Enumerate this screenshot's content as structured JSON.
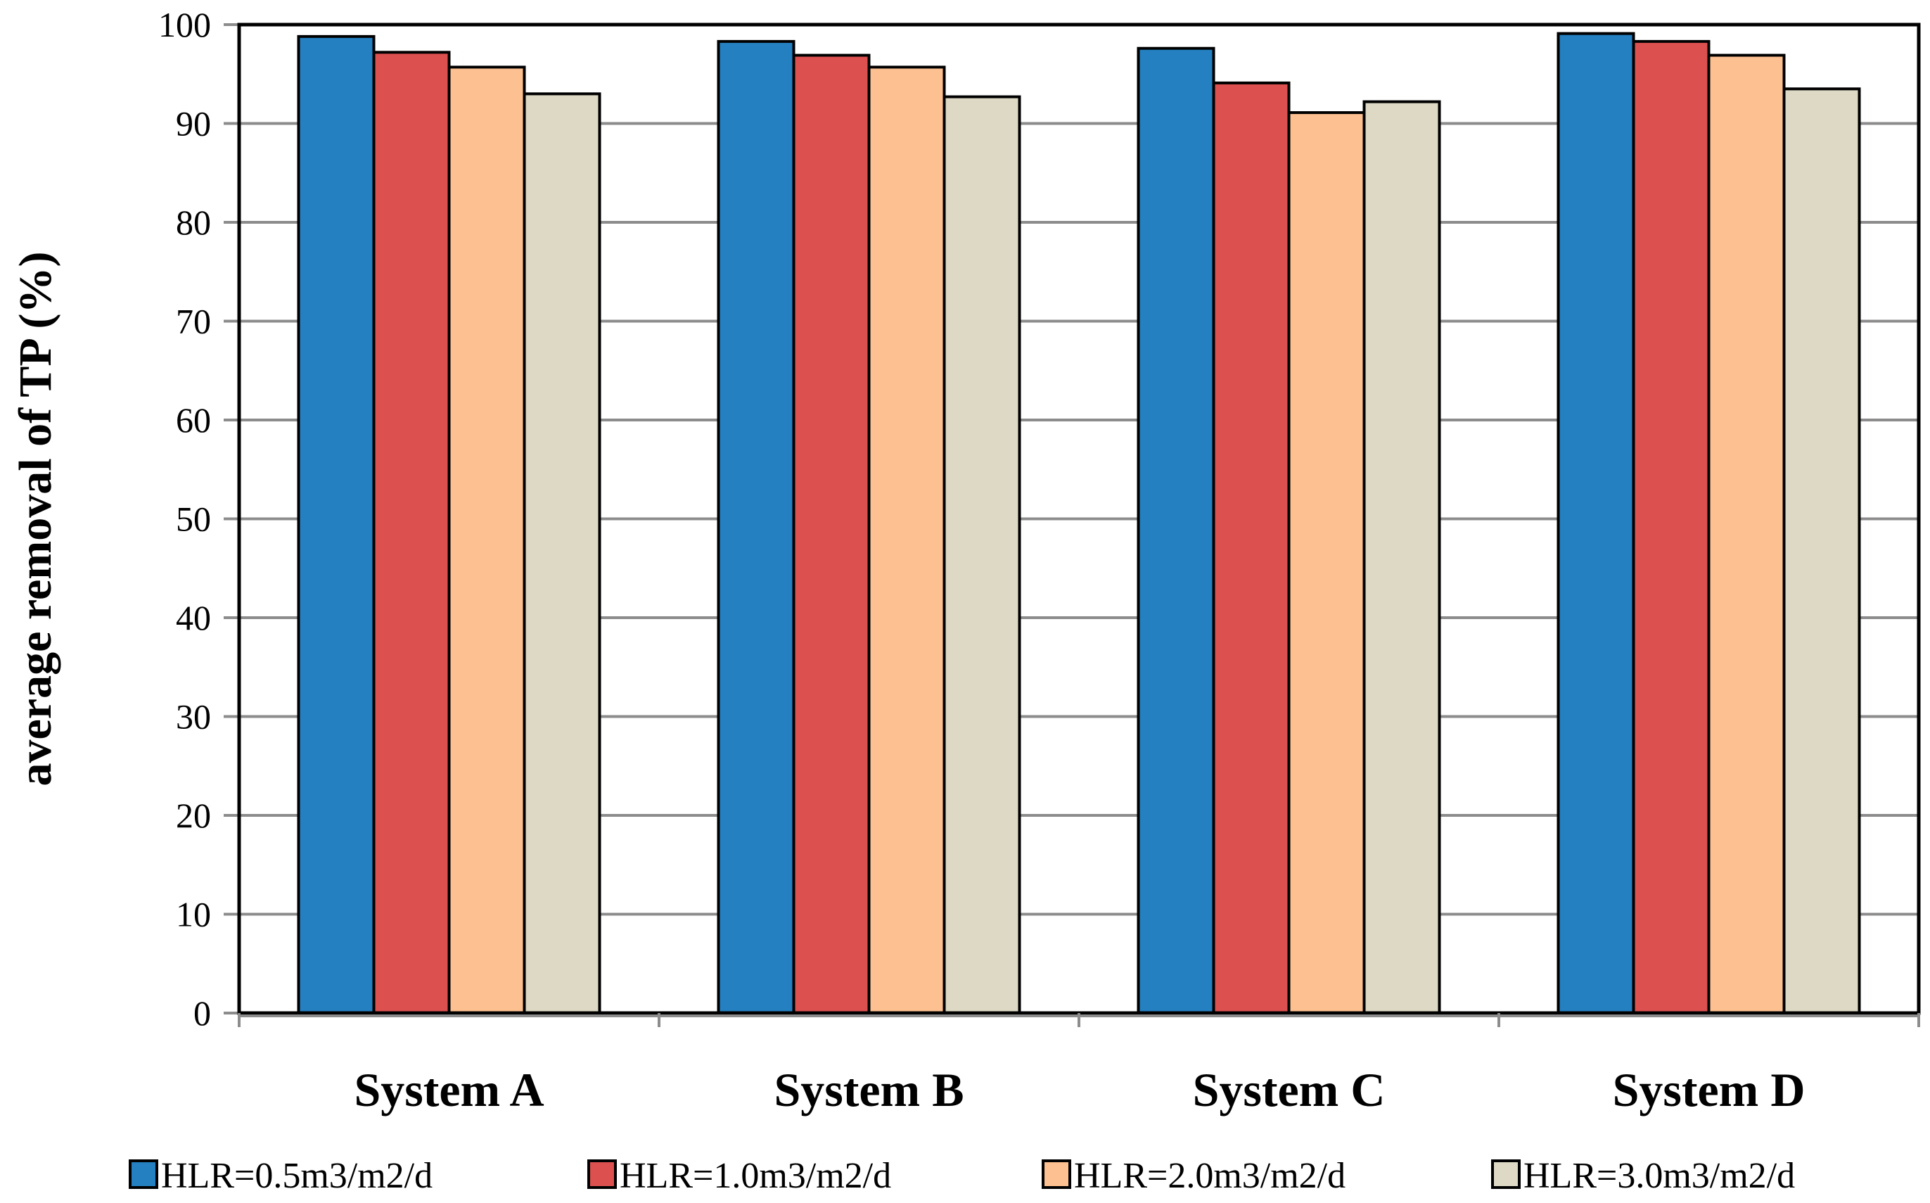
{
  "chart_data": {
    "type": "bar",
    "categories": [
      "System A",
      "System B",
      "System C",
      "System D"
    ],
    "series": [
      {
        "name": "HLR=0.5m3/m2/d",
        "color": "#2480c0",
        "values": [
          98.8,
          98.3,
          97.6,
          99.1
        ]
      },
      {
        "name": "HLR=1.0m3/m2/d",
        "color": "#dc5050",
        "values": [
          97.2,
          96.9,
          94.1,
          98.3
        ]
      },
      {
        "name": "HLR=2.0m3/m2/d",
        "color": "#fdc090",
        "values": [
          95.7,
          95.7,
          91.1,
          96.9
        ]
      },
      {
        "name": "HLR=3.0m3/m2/d",
        "color": "#ddd9c4",
        "values": [
          93.0,
          92.7,
          92.2,
          93.5
        ]
      }
    ],
    "ylabel": "average removal of TP (%)",
    "xlabel": "",
    "ylim": [
      0,
      100
    ],
    "yticks": [
      "0",
      "10",
      "20",
      "30",
      "40",
      "50",
      "60",
      "70",
      "80",
      "90",
      "100"
    ],
    "grid": true,
    "legend": "bottom"
  }
}
